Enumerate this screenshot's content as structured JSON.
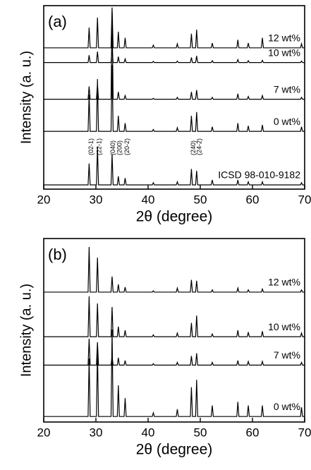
{
  "chart_data": [
    {
      "type": "line",
      "panel_label": "(a)",
      "xlabel": "2θ (degree)",
      "ylabel": "Intensity (a. u.)",
      "xlim": [
        20,
        70
      ],
      "xticks": [
        20,
        30,
        40,
        50,
        60,
        70
      ],
      "ylim": [
        0,
        100
      ],
      "color": "#000000",
      "x": [
        20,
        28.5,
        28.7,
        28.9,
        30.1,
        30.3,
        30.5,
        32.9,
        33.1,
        33.3,
        34.1,
        34.3,
        34.5,
        35.4,
        35.6,
        35.8,
        40.8,
        41,
        41.2,
        45.4,
        45.6,
        45.8,
        48.1,
        48.3,
        48.5,
        49.1,
        49.3,
        49.5,
        52.1,
        52.3,
        52.5,
        57,
        57.2,
        57.4,
        59,
        59.2,
        59.4,
        61.7,
        61.9,
        62.1,
        69.2,
        69.4,
        69.6,
        70
      ],
      "series": [
        {
          "name": "12 wt%",
          "values": [
            77,
            77,
            88,
            77,
            77,
            93.5,
            77,
            77,
            99,
            77,
            77,
            85.8,
            77,
            77,
            82.5,
            77,
            77,
            78.5,
            77,
            77,
            79.2,
            77,
            77,
            84.7,
            77,
            77,
            86.9,
            77,
            77,
            79.6,
            77,
            77,
            81.4,
            77,
            77,
            79.6,
            77,
            77,
            82.5,
            77,
            77,
            79.2,
            77,
            77
          ]
        },
        {
          "name": "10 wt%",
          "values": [
            69,
            69,
            73,
            69,
            69,
            75,
            69,
            69,
            77,
            69,
            69,
            72.2,
            69,
            69,
            71,
            69,
            69,
            69.6,
            69,
            69,
            69.8,
            69,
            69,
            71.8,
            69,
            69,
            72.6,
            69,
            69,
            70,
            69,
            69,
            70.6,
            69,
            69,
            70,
            69,
            69,
            70.2,
            69,
            69,
            69.8,
            69,
            69
          ]
        },
        {
          "name": "7 wt%",
          "values": [
            49,
            49,
            56,
            49,
            49,
            57,
            49,
            49,
            97,
            49,
            49,
            53,
            49,
            49,
            51,
            49,
            49,
            49.5,
            49,
            49,
            50,
            49,
            49,
            53,
            49,
            49,
            54,
            49,
            49,
            50,
            49,
            49,
            52,
            49,
            49,
            50.5,
            49,
            49,
            51,
            49,
            49,
            50,
            49,
            49
          ]
        },
        {
          "name": "0 wt%",
          "values": [
            31.5,
            31.5,
            51.5,
            31.5,
            31.5,
            60,
            31.5,
            31.5,
            67.7,
            31.5,
            31.5,
            40,
            31.5,
            31.5,
            36,
            31.5,
            31.5,
            32.5,
            31.5,
            31.5,
            33.5,
            31.5,
            31.5,
            40,
            31.5,
            31.5,
            42,
            31.5,
            31.5,
            34,
            31.5,
            31.5,
            36,
            31.5,
            31.5,
            34.5,
            31.5,
            31.5,
            35,
            31.5,
            31.5,
            34,
            31.5,
            31.5
          ]
        },
        {
          "name": "ICSD 98-010-9182",
          "values": [
            2.3,
            2.3,
            14,
            2.3,
            2.3,
            23,
            2.3,
            2.3,
            19,
            2.3,
            2.3,
            7,
            2.3,
            2.3,
            6,
            2.3,
            2.3,
            3.5,
            2.3,
            2.3,
            4,
            2.3,
            2.3,
            11,
            2.3,
            2.3,
            10,
            2.3,
            2.3,
            5,
            2.3,
            2.3,
            5,
            2.3,
            2.3,
            4,
            2.3,
            2.3,
            4,
            2.3,
            2.3,
            3.5,
            2.3,
            2.3
          ]
        }
      ],
      "annotations": [
        {
          "text": "(02-1)",
          "x": 28.7
        },
        {
          "text": "(22-1)",
          "x": 30.3
        },
        {
          "text": "(040)",
          "x": 32.9
        },
        {
          "text": "(200)",
          "x": 34.2
        },
        {
          "text": "(20-2)",
          "x": 35.6
        },
        {
          "text": "(240)",
          "x": 48.3
        },
        {
          "text": "(24-2)",
          "x": 49.5
        }
      ]
    },
    {
      "type": "line",
      "panel_label": "(b)",
      "xlabel": "2θ (degree)",
      "ylabel": "Intensity (a. u.)",
      "xlim": [
        20,
        70
      ],
      "xticks": [
        20,
        30,
        40,
        50,
        60,
        70
      ],
      "ylim": [
        0,
        100
      ],
      "color": "#000000",
      "x": [
        20,
        28.5,
        28.7,
        28.9,
        30.1,
        30.3,
        30.5,
        32.9,
        33.1,
        33.3,
        34.1,
        34.3,
        34.5,
        35.4,
        35.6,
        35.8,
        40.8,
        41,
        41.2,
        45.4,
        45.6,
        45.8,
        48.1,
        48.3,
        48.5,
        49.1,
        49.3,
        49.5,
        52.1,
        52.3,
        52.5,
        57,
        57.2,
        57.4,
        59,
        59.2,
        59.4,
        61.7,
        61.9,
        62.1,
        69.2,
        69.4,
        69.6,
        70
      ],
      "series": [
        {
          "name": "12 wt%",
          "values": [
            70.8,
            70.8,
            95.4,
            70.8,
            70.8,
            89.6,
            70.8,
            70.8,
            79.3,
            70.8,
            70.8,
            75,
            70.8,
            70.8,
            73.5,
            70.8,
            70.8,
            71.5,
            70.8,
            70.8,
            73,
            70.8,
            70.8,
            77.5,
            70.8,
            70.8,
            77,
            70.8,
            70.8,
            72,
            70.8,
            70.8,
            73,
            70.8,
            70.8,
            72,
            70.8,
            70.8,
            72.5,
            70.8,
            70.8,
            72,
            70.8,
            70.8
          ]
        },
        {
          "name": "10 wt%",
          "values": [
            46.5,
            46.5,
            68.5,
            46.5,
            46.5,
            64.6,
            46.5,
            46.5,
            62.7,
            46.5,
            46.5,
            52,
            46.5,
            46.5,
            50,
            46.5,
            46.5,
            47.5,
            46.5,
            46.5,
            48.5,
            46.5,
            46.5,
            54,
            46.5,
            46.5,
            58,
            46.5,
            46.5,
            48,
            46.5,
            46.5,
            50,
            46.5,
            46.5,
            49,
            46.5,
            46.5,
            49.5,
            46.5,
            46.5,
            48.5,
            46.5,
            46.5
          ]
        },
        {
          "name": "7 wt%",
          "values": [
            31,
            31,
            45.4,
            31,
            31,
            43.5,
            31,
            31,
            35.8,
            31,
            31,
            35,
            31,
            31,
            33.5,
            31,
            31,
            31.8,
            31,
            31,
            32.5,
            31,
            31,
            36,
            31,
            31,
            37.5,
            31,
            31,
            32.5,
            31,
            31,
            33.5,
            31,
            31,
            33,
            31,
            31,
            33,
            31,
            31,
            32.5,
            31,
            31
          ]
        },
        {
          "name": "0 wt%",
          "values": [
            3,
            3,
            34.6,
            3,
            3,
            39,
            3,
            3,
            50.4,
            3,
            3,
            20,
            3,
            3,
            13,
            3,
            3,
            5,
            3,
            3,
            7,
            3,
            3,
            19,
            3,
            3,
            23,
            3,
            3,
            9,
            3,
            3,
            11,
            3,
            3,
            9,
            3,
            3,
            9,
            3,
            3,
            8,
            3,
            3
          ]
        }
      ]
    }
  ]
}
